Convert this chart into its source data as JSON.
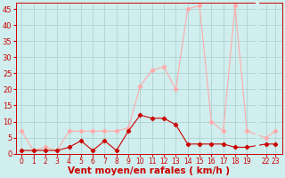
{
  "x_mean": [
    0,
    1,
    2,
    3,
    4,
    5,
    6,
    7,
    8,
    9,
    10,
    11,
    12,
    13,
    14,
    15,
    16,
    17,
    18,
    19,
    22,
    23
  ],
  "y_mean": [
    1,
    1,
    1,
    1,
    2,
    4,
    1,
    4,
    1,
    7,
    12,
    11,
    11,
    9,
    3,
    3,
    3,
    3,
    2,
    2,
    3,
    3
  ],
  "x_gust": [
    0,
    1,
    2,
    3,
    4,
    5,
    6,
    7,
    8,
    9,
    10,
    11,
    12,
    13,
    14,
    15,
    16,
    17,
    18,
    19,
    22,
    23
  ],
  "y_gust": [
    7,
    1,
    2,
    1,
    7,
    7,
    7,
    7,
    7,
    8,
    21,
    26,
    27,
    20,
    45,
    46,
    10,
    7,
    46,
    7,
    5,
    7
  ],
  "color_mean": "#cc0000",
  "color_gust": "#ffaaaa",
  "bg_color": "#d0eeee",
  "grid_color": "#aacccc",
  "xlabel": "Vent moyen/en rafales ( km/h )",
  "xlabel_color": "#cc0000",
  "tick_color": "#cc0000",
  "ylim": [
    0,
    47
  ],
  "yticks": [
    0,
    5,
    10,
    15,
    20,
    25,
    30,
    35,
    40,
    45
  ]
}
